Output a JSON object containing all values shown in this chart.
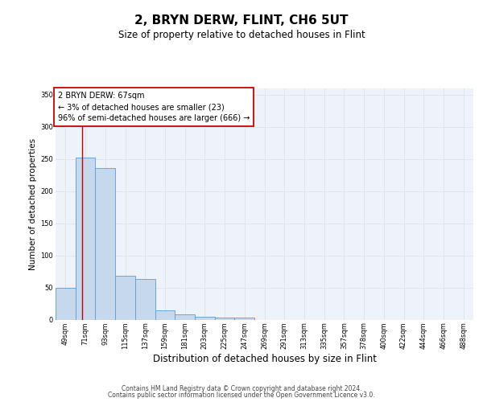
{
  "title": "2, BRYN DERW, FLINT, CH6 5UT",
  "subtitle": "Size of property relative to detached houses in Flint",
  "xlabel": "Distribution of detached houses by size in Flint",
  "ylabel": "Number of detached properties",
  "footer1": "Contains HM Land Registry data © Crown copyright and database right 2024.",
  "footer2": "Contains public sector information licensed under the Open Government Licence v3.0.",
  "annotation_line1": "2 BRYN DERW: 67sqm",
  "annotation_line2": "← 3% of detached houses are smaller (23)",
  "annotation_line3": "96% of semi-detached houses are larger (666) →",
  "bar_labels": [
    "49sqm",
    "71sqm",
    "93sqm",
    "115sqm",
    "137sqm",
    "159sqm",
    "181sqm",
    "203sqm",
    "225sqm",
    "247sqm",
    "269sqm",
    "291sqm",
    "313sqm",
    "335sqm",
    "357sqm",
    "378sqm",
    "400sqm",
    "422sqm",
    "444sqm",
    "466sqm",
    "488sqm"
  ],
  "bar_values": [
    49,
    252,
    236,
    68,
    63,
    15,
    8,
    5,
    3,
    3,
    0,
    0,
    0,
    0,
    0,
    0,
    0,
    0,
    0,
    0,
    0
  ],
  "bar_color": "#c5d8ec",
  "bar_edge_color": "#5b9bd5",
  "grid_color": "#dde6f0",
  "background_color": "#eef3f9",
  "annotation_box_color": "#ffffff",
  "annotation_box_edge": "#cc0000",
  "red_line_color": "#cc0000",
  "ylim": [
    0,
    360
  ],
  "yticks": [
    0,
    50,
    100,
    150,
    200,
    250,
    300,
    350
  ],
  "title_fontsize": 11,
  "subtitle_fontsize": 8.5,
  "ylabel_fontsize": 7.5,
  "xlabel_fontsize": 8.5,
  "tick_fontsize": 6,
  "annotation_fontsize": 7,
  "footer_fontsize": 5.5
}
